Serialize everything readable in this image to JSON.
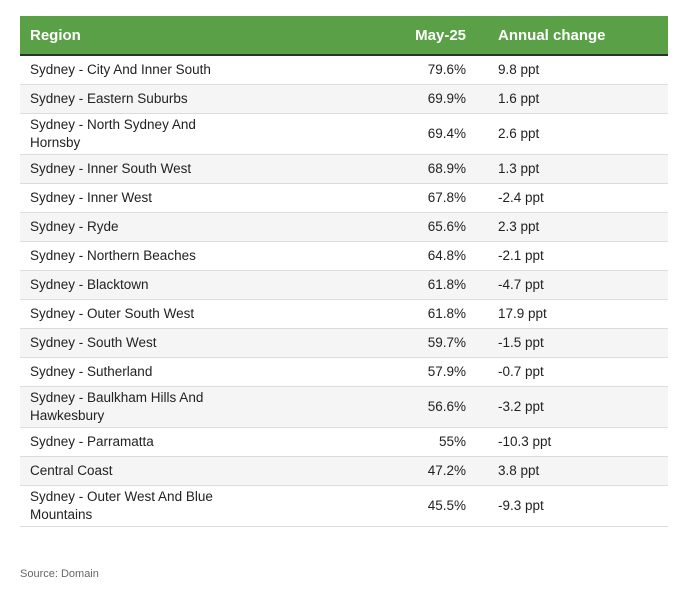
{
  "table": {
    "headers": {
      "region": "Region",
      "month": "May-25",
      "change": "Annual change"
    },
    "rows": [
      {
        "region": "Sydney - City And Inner South",
        "value": "79.6%",
        "change": "9.8 ppt"
      },
      {
        "region": "Sydney - Eastern Suburbs",
        "value": "69.9%",
        "change": "1.6 ppt"
      },
      {
        "region": "Sydney - North Sydney And Hornsby",
        "value": "69.4%",
        "change": "2.6 ppt"
      },
      {
        "region": "Sydney - Inner South West",
        "value": "68.9%",
        "change": "1.3 ppt"
      },
      {
        "region": "Sydney - Inner West",
        "value": "67.8%",
        "change": "-2.4 ppt"
      },
      {
        "region": "Sydney - Ryde",
        "value": "65.6%",
        "change": "2.3 ppt"
      },
      {
        "region": "Sydney - Northern Beaches",
        "value": "64.8%",
        "change": "-2.1 ppt"
      },
      {
        "region": "Sydney - Blacktown",
        "value": "61.8%",
        "change": "-4.7 ppt"
      },
      {
        "region": "Sydney - Outer South West",
        "value": "61.8%",
        "change": "17.9 ppt"
      },
      {
        "region": "Sydney - South West",
        "value": "59.7%",
        "change": "-1.5 ppt"
      },
      {
        "region": "Sydney - Sutherland",
        "value": "57.9%",
        "change": "-0.7 ppt"
      },
      {
        "region": "Sydney - Baulkham Hills And Hawkesbury",
        "value": "56.6%",
        "change": "-3.2 ppt"
      },
      {
        "region": "Sydney - Parramatta",
        "value": "55%",
        "change": "-10.3 ppt"
      },
      {
        "region": "Central Coast",
        "value": "47.2%",
        "change": "3.8 ppt"
      },
      {
        "region": "Sydney - Outer West And Blue Mountains",
        "value": "45.5%",
        "change": "-9.3 ppt"
      }
    ]
  },
  "source": "Source: Domain",
  "colors": {
    "header_bg": "#5aa046",
    "header_text": "#ffffff",
    "stripe": "#f5f5f5"
  }
}
